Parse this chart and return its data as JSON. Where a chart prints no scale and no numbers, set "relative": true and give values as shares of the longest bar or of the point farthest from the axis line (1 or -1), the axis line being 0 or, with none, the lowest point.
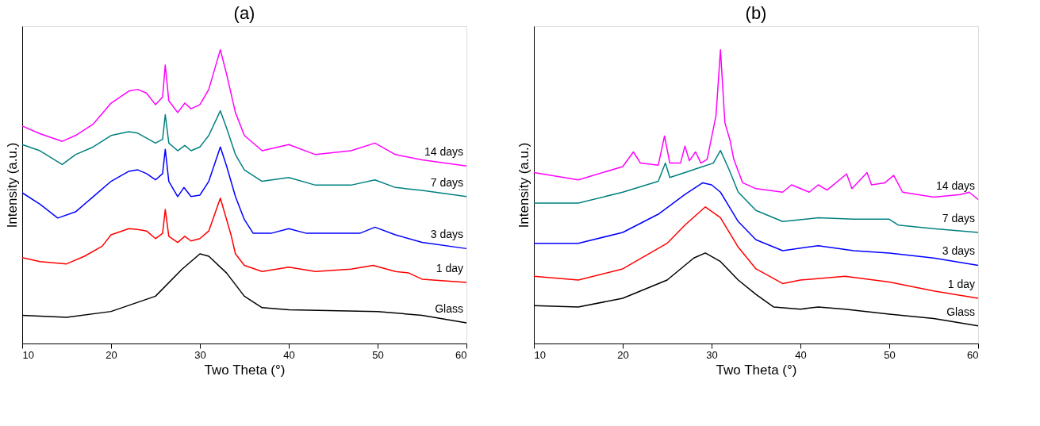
{
  "chart_data": [
    {
      "type": "line",
      "relative": true,
      "title": "(a)",
      "xlabel": "Two Theta (°)",
      "ylabel": "Intensity (a.u.)",
      "xlim": [
        10,
        60
      ],
      "xticks": [
        10,
        20,
        30,
        40,
        50,
        60
      ],
      "tick_labels": "x",
      "series": [
        {
          "name": "Glass",
          "color": "#000000",
          "x": [
            10,
            15,
            20,
            25,
            28,
            30,
            31,
            33,
            35,
            37,
            40,
            50,
            55,
            60
          ],
          "values": [
            0.096,
            0.089,
            0.109,
            0.161,
            0.253,
            0.305,
            0.297,
            0.24,
            0.161,
            0.122,
            0.115,
            0.109,
            0.096,
            0.07
          ]
        },
        {
          "name": "1 day",
          "color": "#ff0000",
          "x": [
            10,
            12,
            15,
            17,
            19,
            20,
            22,
            23,
            24,
            25,
            25.8,
            26.1,
            26.5,
            27.5,
            28.3,
            29,
            30,
            31,
            32.3,
            33,
            33.5,
            34,
            35,
            37,
            40,
            43,
            47,
            49.5,
            52,
            53.5,
            55,
            60
          ],
          "values": [
            0.292,
            0.279,
            0.271,
            0.297,
            0.331,
            0.37,
            0.391,
            0.388,
            0.383,
            0.357,
            0.375,
            0.456,
            0.365,
            0.344,
            0.365,
            0.349,
            0.357,
            0.383,
            0.495,
            0.422,
            0.37,
            0.305,
            0.266,
            0.245,
            0.26,
            0.245,
            0.253,
            0.266,
            0.245,
            0.24,
            0.219,
            0.208
          ]
        },
        {
          "name": "3 days",
          "color": "#0000ff",
          "x": [
            10,
            12,
            14,
            16,
            18,
            20,
            22,
            23,
            24,
            25,
            25.8,
            26.1,
            26.5,
            27.5,
            28.2,
            29,
            30,
            31,
            32.3,
            33,
            34,
            35,
            36,
            38,
            40,
            42,
            45,
            48,
            49.7,
            52,
            55,
            60
          ],
          "values": [
            0.513,
            0.474,
            0.427,
            0.448,
            0.5,
            0.552,
            0.586,
            0.591,
            0.578,
            0.557,
            0.578,
            0.661,
            0.552,
            0.5,
            0.531,
            0.5,
            0.505,
            0.552,
            0.669,
            0.604,
            0.5,
            0.422,
            0.375,
            0.375,
            0.391,
            0.375,
            0.375,
            0.375,
            0.396,
            0.37,
            0.344,
            0.323
          ]
        },
        {
          "name": "7 days",
          "color": "#008080",
          "x": [
            10,
            12,
            14.5,
            16,
            18,
            20,
            22,
            23,
            25,
            25.8,
            26.1,
            26.5,
            27.5,
            28.3,
            29,
            30,
            31,
            32.3,
            33,
            34,
            35,
            37,
            40,
            43,
            47,
            49.7,
            52,
            55,
            60
          ],
          "values": [
            0.677,
            0.656,
            0.609,
            0.643,
            0.669,
            0.708,
            0.721,
            0.716,
            0.682,
            0.695,
            0.779,
            0.682,
            0.656,
            0.674,
            0.656,
            0.669,
            0.708,
            0.792,
            0.734,
            0.643,
            0.591,
            0.552,
            0.565,
            0.539,
            0.539,
            0.557,
            0.531,
            0.521,
            0.5
          ]
        },
        {
          "name": "14 days",
          "color": "#ff00ff",
          "x": [
            10,
            12,
            14.5,
            16,
            18,
            20,
            22,
            23,
            24,
            25,
            25.8,
            26.1,
            26.5,
            27.5,
            28.3,
            29,
            30,
            31,
            32.3,
            33,
            34,
            35,
            37,
            40,
            43,
            47,
            49.7,
            52,
            55,
            60
          ],
          "values": [
            0.74,
            0.714,
            0.688,
            0.708,
            0.747,
            0.818,
            0.859,
            0.865,
            0.852,
            0.813,
            0.839,
            0.948,
            0.826,
            0.786,
            0.818,
            0.799,
            0.813,
            0.865,
            1,
            0.917,
            0.786,
            0.708,
            0.656,
            0.677,
            0.643,
            0.656,
            0.682,
            0.643,
            0.625,
            0.604
          ]
        }
      ]
    },
    {
      "type": "line",
      "relative": true,
      "title": "(b)",
      "xlabel": "Two Theta (°)",
      "ylabel": "Intensity (a.u.)",
      "xlim": [
        10,
        60
      ],
      "xticks": [
        10,
        20,
        30,
        40,
        50,
        60
      ],
      "tick_labels": "x",
      "series": [
        {
          "name": "Glass",
          "color": "#000000",
          "x": [
            10,
            15,
            20,
            25,
            28,
            29.3,
            31,
            33,
            35,
            37,
            40,
            42,
            45,
            50,
            55,
            60
          ],
          "values": [
            0.129,
            0.124,
            0.154,
            0.216,
            0.291,
            0.308,
            0.279,
            0.216,
            0.167,
            0.124,
            0.117,
            0.124,
            0.117,
            0.1,
            0.085,
            0.06
          ]
        },
        {
          "name": "1 day",
          "color": "#ff0000",
          "x": [
            10,
            15,
            20,
            25,
            27,
            29.3,
            31,
            33,
            35,
            38,
            40,
            45,
            50,
            55,
            60
          ],
          "values": [
            0.229,
            0.216,
            0.254,
            0.341,
            0.403,
            0.465,
            0.428,
            0.328,
            0.254,
            0.204,
            0.216,
            0.229,
            0.209,
            0.179,
            0.154
          ]
        },
        {
          "name": "3 days",
          "color": "#0000ff",
          "x": [
            10,
            15,
            20,
            24,
            27,
            29,
            30,
            31,
            33,
            35,
            38,
            42,
            46,
            50,
            55,
            60
          ],
          "values": [
            0.341,
            0.341,
            0.378,
            0.44,
            0.507,
            0.547,
            0.54,
            0.515,
            0.415,
            0.353,
            0.316,
            0.333,
            0.316,
            0.308,
            0.291,
            0.266
          ]
        },
        {
          "name": "7 days",
          "color": "#008080",
          "x": [
            10,
            15,
            20,
            24,
            24.8,
            25.3,
            27,
            29,
            30.2,
            31,
            32,
            33,
            35,
            38,
            42,
            46,
            50,
            51,
            55,
            60
          ],
          "values": [
            0.478,
            0.478,
            0.515,
            0.552,
            0.614,
            0.565,
            0.582,
            0.602,
            0.614,
            0.657,
            0.59,
            0.515,
            0.453,
            0.415,
            0.428,
            0.423,
            0.423,
            0.403,
            0.391,
            0.378
          ]
        },
        {
          "name": "14 days",
          "color": "#ff00ff",
          "x": [
            10,
            15,
            20,
            21.2,
            22,
            24,
            24.7,
            25.3,
            26.5,
            27,
            27.5,
            28.2,
            28.8,
            29.5,
            30.5,
            31,
            31.5,
            32.1,
            32.5,
            33.5,
            35,
            38,
            39,
            41,
            42,
            43,
            45.2,
            45.8,
            47.5,
            48,
            49.5,
            50.5,
            51.5,
            55,
            58,
            59,
            60
          ],
          "values": [
            0.582,
            0.557,
            0.602,
            0.652,
            0.614,
            0.607,
            0.706,
            0.614,
            0.614,
            0.672,
            0.622,
            0.652,
            0.614,
            0.627,
            0.776,
            1,
            0.751,
            0.689,
            0.627,
            0.547,
            0.527,
            0.515,
            0.54,
            0.515,
            0.54,
            0.522,
            0.577,
            0.527,
            0.582,
            0.54,
            0.547,
            0.572,
            0.515,
            0.498,
            0.507,
            0.515,
            0.49
          ]
        }
      ]
    }
  ]
}
